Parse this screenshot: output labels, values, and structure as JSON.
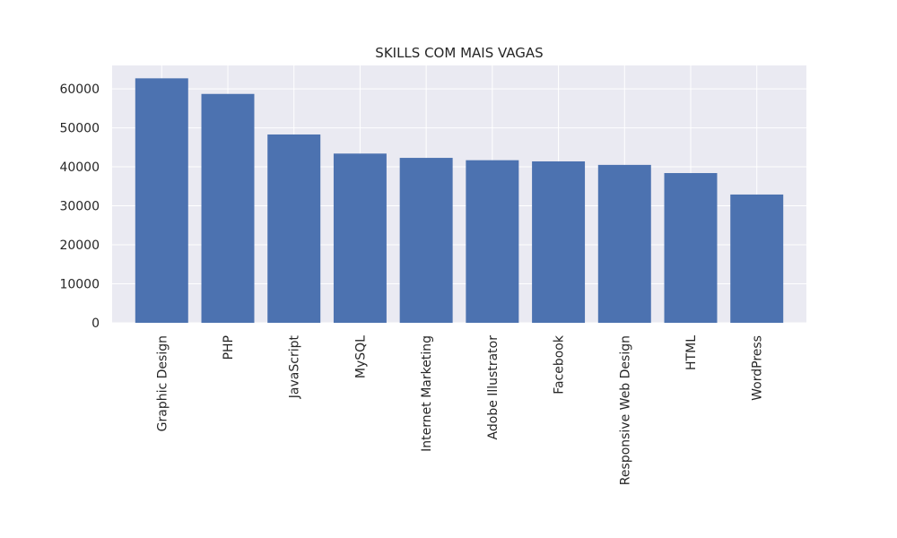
{
  "chart_data": {
    "type": "bar",
    "title": "SKILLS COM MAIS VAGAS",
    "xlabel": "",
    "ylabel": "",
    "categories": [
      "Graphic Design",
      "PHP",
      "JavaScript",
      "MySQL",
      "Internet Marketing",
      "Adobe Illustrator",
      "Facebook",
      "Responsive Web Design",
      "HTML",
      "WordPress"
    ],
    "values": [
      62700,
      58700,
      48300,
      43400,
      42300,
      41700,
      41400,
      40500,
      38400,
      32900
    ],
    "ylim": [
      0,
      66000
    ],
    "yticks": [
      0,
      10000,
      20000,
      30000,
      40000,
      50000,
      60000
    ],
    "grid": true,
    "bar_color": "#4c72b0",
    "background_color": "#eaeaf2",
    "grid_color": "#ffffff"
  }
}
